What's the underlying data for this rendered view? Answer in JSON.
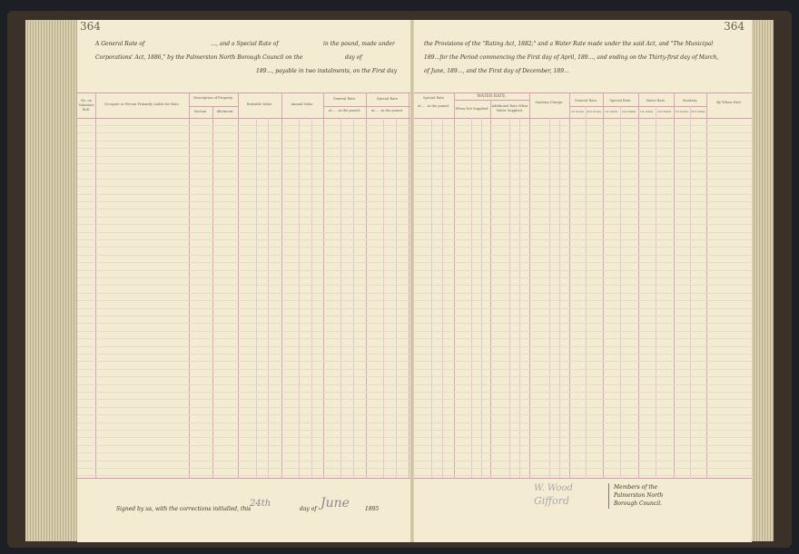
{
  "left_page": {
    "page_number": "364",
    "lines": [
      "A General Rate of",
      "…, and a Special Rate of",
      "in the pound, made under",
      "Corporations' Act, 1886,\" by the Palmerston North Borough Council on the",
      "day of",
      "189…, payable in two instalments, on the First day"
    ],
    "headers": {
      "valuation": "No. on Valuation Roll.",
      "occupier": "Occupier or Person Primarily Liable for Rate.",
      "description": "Description of Property.",
      "section": "Section.",
      "allotment": "Allotment.",
      "rateable": "Rateable Value.",
      "annual": "Annual Value.",
      "general": "General Rate.",
      "general_sub": "at……in the pound.",
      "special": "Special Rate",
      "special_sub": "at……in the pound."
    },
    "signed_text": "Signed by us, with the corrections initialled, this",
    "signed_day": "24th",
    "day_of": "day of",
    "signed_month": "June",
    "signed_year": "1895"
  },
  "right_page": {
    "page_number": "364",
    "lines": [
      "the Provisions of the \"Rating Act, 1882;\" and a Water Rate made under the said Act, and \"The Municipal",
      "189…for the Period commencing the First day of April, 189…, and ending on the Thirty-first day of March,",
      "of June, 189…, and the First day of December, 189…"
    ],
    "headers": {
      "special": "Special Rate",
      "special_sub": "at……in the pound.",
      "water": "WATER RATE.",
      "not_supplied": "When Not Supplied.",
      "additional": "Additional Rate When Water Supplied.",
      "sanitary_charge": "Sanitary Charge.",
      "general": "General Rate.",
      "special2": "Special Rate.",
      "water2": "Water Rate.",
      "sanitary": "Sanitary.",
      "inst1": "1st Instal.",
      "inst2": "2nd Instal.",
      "paid": "By Whom Paid."
    },
    "signatures": [
      "W. Wood",
      "Gifford"
    ],
    "members": [
      "Members of the",
      "Palmerston North",
      "Borough Council."
    ]
  }
}
